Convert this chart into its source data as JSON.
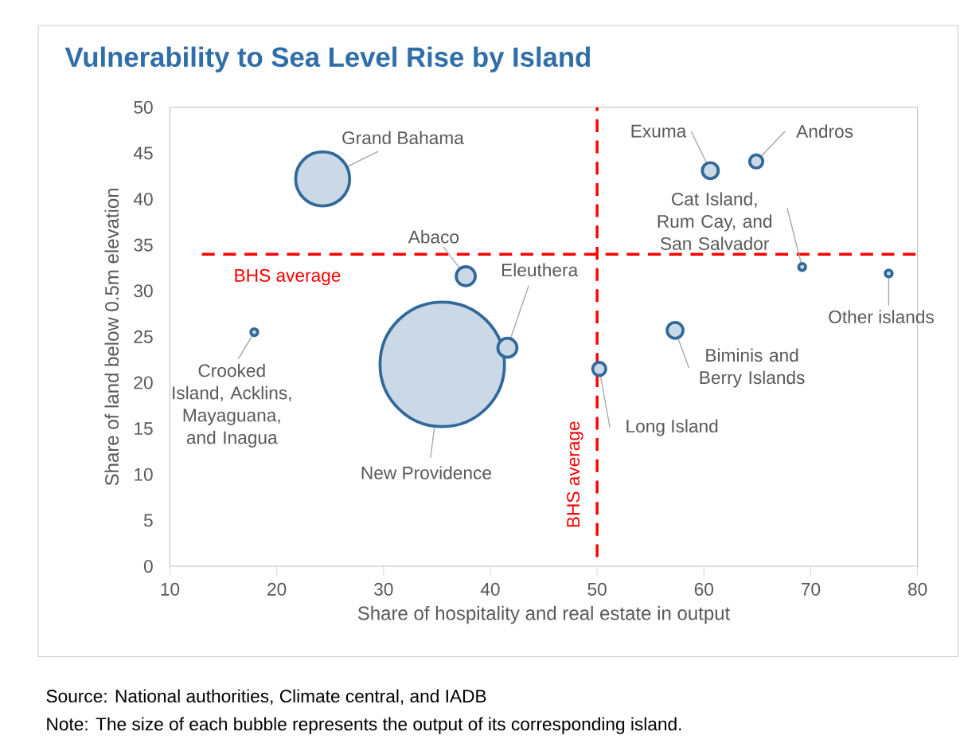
{
  "chart_data": {
    "type": "bubble",
    "title": "Vulnerability to Sea Level Rise by Island",
    "xlabel": "Share of hospitality and real estate in output",
    "ylabel": "Share of land below 0.5m elevation",
    "x": [
      24.3,
      37.7,
      35.5,
      41.6,
      17.9,
      50.2,
      57.3,
      60.6,
      64.9,
      69.2,
      77.3
    ],
    "values": [
      42.2,
      31.6,
      22.0,
      23.8,
      25.5,
      21.5,
      25.7,
      43.1,
      44.1,
      32.6,
      31.9
    ],
    "sizes": [
      0.2,
      0.03,
      1,
      0.03,
      0.006,
      0.016,
      0.022,
      0.022,
      0.016,
      0.006,
      0.006
    ],
    "color": "#31699a",
    "xlim": [
      10,
      80
    ],
    "ylim": [
      0,
      50
    ],
    "xticks": [
      10,
      20,
      30,
      40,
      50,
      60,
      70,
      80
    ],
    "yticks": [
      0,
      5,
      10,
      15,
      20,
      25,
      30,
      35,
      40,
      45,
      50
    ],
    "ref_lines": [
      {
        "axis": "y",
        "value": 34,
        "label": "BHS average",
        "color": "#ff0000",
        "line_style": "dashed"
      },
      {
        "axis": "x",
        "value": 50,
        "label": "BHS average",
        "color": "#ff0000",
        "line_style": "dashed"
      }
    ],
    "annotations": [
      {
        "text": "Grand Bahama",
        "x": 24.3,
        "y": 42.2
      },
      {
        "text": "Abaco",
        "x": 37.7,
        "y": 31.6
      },
      {
        "text": "New Providence",
        "x": 35.5,
        "y": 22.0
      },
      {
        "text": "Eleuthera",
        "x": 41.6,
        "y": 23.8
      },
      {
        "text": "Crooked Island, Acklins, Mayaguana, and Inagua",
        "x": 17.9,
        "y": 25.5
      },
      {
        "text": "Long Island",
        "x": 50.2,
        "y": 21.5
      },
      {
        "text": "Biminis and Berry Islands",
        "x": 57.3,
        "y": 25.7
      },
      {
        "text": "Exuma",
        "x": 60.6,
        "y": 43.1
      },
      {
        "text": "Andros",
        "x": 64.9,
        "y": 44.1
      },
      {
        "text": "Cat Island, Rum Cay, and San Salvador",
        "x": 69.2,
        "y": 32.6
      },
      {
        "text": "Other islands",
        "x": 77.3,
        "y": 31.9
      },
      "Source: National authorities, Climate central, and IADB",
      "Note: The size of each bubble represents the output of its corresponding island."
    ]
  }
}
